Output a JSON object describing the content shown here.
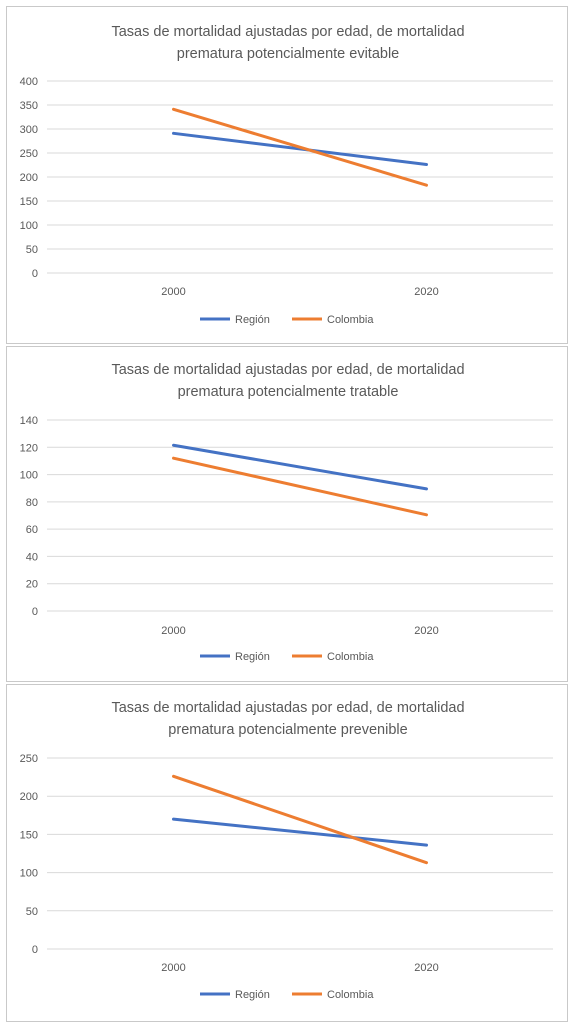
{
  "colors": {
    "series_1": "#4472C4",
    "series_2": "#ED7D31",
    "grid": "#d9d9d9",
    "text": "#595959"
  },
  "chart_data": [
    {
      "type": "line",
      "title_lines": [
        "Tasas de mortalidad ajustadas por edad, de mortalidad",
        "prematura potencialmente evitable"
      ],
      "x": [
        "2000",
        "2020"
      ],
      "yticks": [
        "0",
        "50",
        "100",
        "150",
        "200",
        "250",
        "300",
        "350",
        "400"
      ],
      "ylim": [
        0,
        400
      ],
      "series": [
        {
          "name": "Región",
          "values": [
            291,
            226
          ]
        },
        {
          "name": "Colombia",
          "values": [
            341,
            183
          ]
        }
      ],
      "grid": true,
      "legend": "bottom"
    },
    {
      "type": "line",
      "title_lines": [
        "Tasas de mortalidad ajustadas por edad, de mortalidad",
        "prematura potencialmente tratable"
      ],
      "x": [
        "2000",
        "2020"
      ],
      "yticks": [
        "0",
        "20",
        "40",
        "60",
        "80",
        "100",
        "120",
        "140"
      ],
      "ylim": [
        0,
        140
      ],
      "series": [
        {
          "name": "Región",
          "values": [
            121.5,
            89.5
          ]
        },
        {
          "name": "Colombia",
          "values": [
            112,
            70.5
          ]
        }
      ],
      "grid": true,
      "legend": "bottom"
    },
    {
      "type": "line",
      "title_lines": [
        "Tasas de mortalidad ajustadas por edad, de mortalidad",
        "prematura potencialmente prevenible"
      ],
      "x": [
        "2000",
        "2020"
      ],
      "yticks": [
        "0",
        "50",
        "100",
        "150",
        "200",
        "250"
      ],
      "ylim": [
        0,
        250
      ],
      "series": [
        {
          "name": "Región",
          "values": [
            170,
            136
          ]
        },
        {
          "name": "Colombia",
          "values": [
            226,
            113
          ]
        }
      ],
      "grid": true,
      "legend": "bottom"
    }
  ]
}
